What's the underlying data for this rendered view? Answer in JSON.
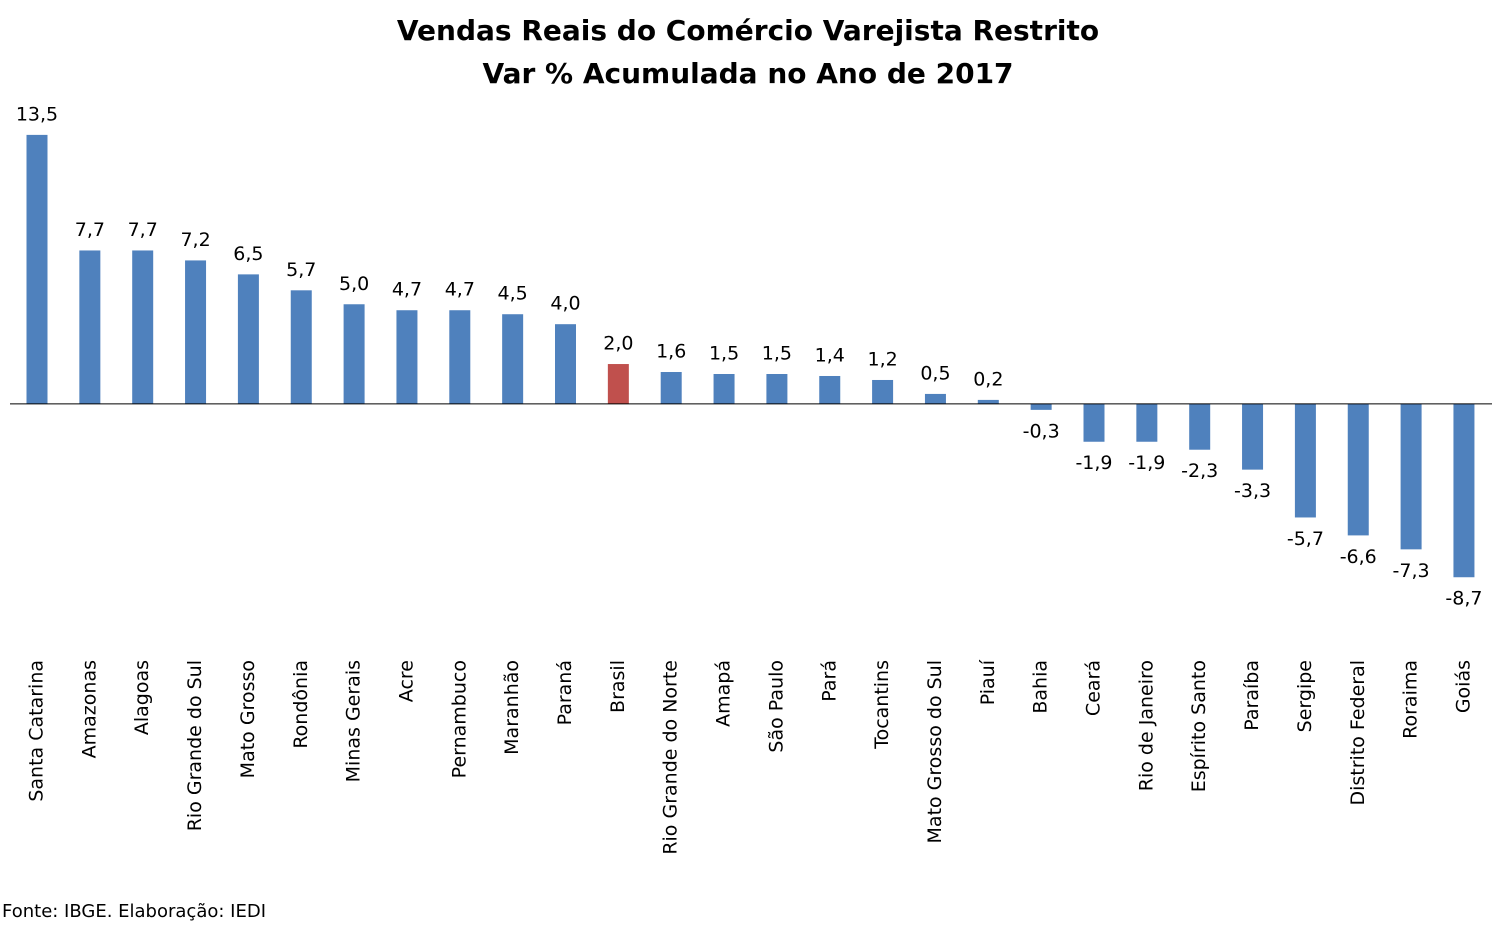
{
  "chart_data": {
    "type": "bar",
    "title": "Vendas Reais do Comércio Varejista Restrito",
    "subtitle": "Var % Acumulada no Ano de 2017",
    "categories": [
      "Santa Catarina",
      "Amazonas",
      "Alagoas",
      "Rio Grande do Sul",
      "Mato Grosso",
      "Rondônia",
      "Minas Gerais",
      "Acre",
      "Pernambuco",
      "Maranhão",
      "Paraná",
      "Brasil",
      "Rio Grande do Norte",
      "Amapá",
      "São Paulo",
      "Pará",
      "Tocantins",
      "Mato Grosso do Sul",
      "Piauí",
      "Bahia",
      "Ceará",
      "Rio de Janeiro",
      "Espírito Santo",
      "Paraíba",
      "Sergipe",
      "Distrito Federal",
      "Roraima",
      "Goiás"
    ],
    "values": [
      13.5,
      7.7,
      7.7,
      7.2,
      6.5,
      5.7,
      5.0,
      4.7,
      4.7,
      4.5,
      4.0,
      2.0,
      1.6,
      1.5,
      1.5,
      1.4,
      1.2,
      0.5,
      0.2,
      -0.3,
      -1.9,
      -1.9,
      -2.3,
      -3.3,
      -5.7,
      -6.6,
      -7.3,
      -8.7
    ],
    "value_labels": [
      "13,5",
      "7,7",
      "7,7",
      "7,2",
      "6,5",
      "5,7",
      "5,0",
      "4,7",
      "4,7",
      "4,5",
      "4,0",
      "2,0",
      "1,6",
      "1,5",
      "1,5",
      "1,4",
      "1,2",
      "0,5",
      "0,2",
      "-0,3",
      "-1,9",
      "-1,9",
      "-2,3",
      "-3,3",
      "-5,7",
      "-6,6",
      "-7,3",
      "-8,7"
    ],
    "colors": [
      "#4f81bd",
      "#4f81bd",
      "#4f81bd",
      "#4f81bd",
      "#4f81bd",
      "#4f81bd",
      "#4f81bd",
      "#4f81bd",
      "#4f81bd",
      "#4f81bd",
      "#4f81bd",
      "#c0504d",
      "#4f81bd",
      "#4f81bd",
      "#4f81bd",
      "#4f81bd",
      "#4f81bd",
      "#4f81bd",
      "#4f81bd",
      "#4f81bd",
      "#4f81bd",
      "#4f81bd",
      "#4f81bd",
      "#4f81bd",
      "#4f81bd",
      "#4f81bd",
      "#4f81bd",
      "#4f81bd"
    ],
    "ylim": [
      -12,
      15
    ],
    "source": "Fonte: IBGE. Elaboração: IEDI"
  }
}
